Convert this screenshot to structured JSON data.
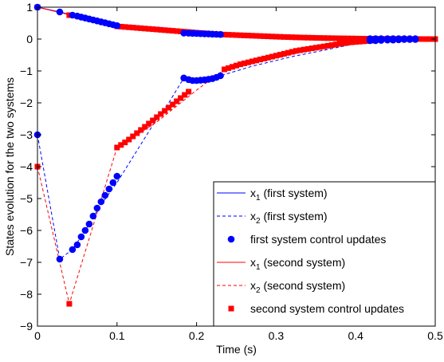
{
  "chart_data": {
    "type": "line",
    "title": "",
    "xlabel": "Time (s)",
    "ylabel": "States evolution for the two systems",
    "xlim": [
      0,
      0.5
    ],
    "ylim": [
      -9,
      1
    ],
    "xticks": [
      "0",
      "0.1",
      "0.2",
      "0.3",
      "0.4",
      "0.5"
    ],
    "yticks": [
      "1",
      "0",
      "−1",
      "−2",
      "−3",
      "−4",
      "−5",
      "−6",
      "−7",
      "−8",
      "−9"
    ],
    "grid": false,
    "legend_position": "bottom-right",
    "colors": {
      "first": "#0000ff",
      "second": "#ff0000"
    },
    "legend": [
      {
        "main": "x",
        "sub": "1",
        "tail": " (first system)",
        "series": "x1-first",
        "style": "solid-line",
        "color": "#0000ff"
      },
      {
        "main": "x",
        "sub": "2",
        "tail": " (first system)",
        "series": "x2-first",
        "style": "dashed-line",
        "color": "#0000ff"
      },
      {
        "main": "first system control updates",
        "sub": "",
        "tail": "",
        "series": "updates-first",
        "style": "circle-marker",
        "color": "#0000ff"
      },
      {
        "main": "x",
        "sub": "1",
        "tail": " (second system)",
        "series": "x1-second",
        "style": "solid-line",
        "color": "#ff0000"
      },
      {
        "main": "x",
        "sub": "2",
        "tail": " (second system)",
        "series": "x2-second",
        "style": "dashed-line",
        "color": "#ff0000"
      },
      {
        "main": "second system control updates",
        "sub": "",
        "tail": "",
        "series": "updates-second",
        "style": "square-marker",
        "color": "#ff0000"
      }
    ],
    "series": [
      {
        "id": "x1-first",
        "color": "#0000ff",
        "dash": false,
        "x": [
          0,
          0.028,
          0.044,
          0.06,
          0.08,
          0.1,
          0.12,
          0.15,
          0.184,
          0.2,
          0.23,
          0.27,
          0.32,
          0.37,
          0.418,
          0.45,
          0.475
        ],
        "y": [
          1,
          0.85,
          0.75,
          0.65,
          0.52,
          0.4,
          0.34,
          0.27,
          0.19,
          0.17,
          0.13,
          0.08,
          0.04,
          0.02,
          0.01,
          0.005,
          0.0
        ]
      },
      {
        "id": "x2-first",
        "color": "#0000ff",
        "dash": true,
        "x": [
          0,
          0.028,
          0.044,
          0.06,
          0.077,
          0.1,
          0.125,
          0.15,
          0.165,
          0.184,
          0.2,
          0.23,
          0.27,
          0.32,
          0.37,
          0.418,
          0.475
        ],
        "y": [
          -3,
          -6.9,
          -6.6,
          -6.0,
          -5.3,
          -4.5,
          -3.5,
          -2.5,
          -2.0,
          -1.22,
          -1.25,
          -1.15,
          -0.85,
          -0.55,
          -0.3,
          -0.05,
          0.0
        ]
      },
      {
        "id": "x1-second",
        "color": "#ff0000",
        "dash": false,
        "x": [
          0,
          0.042,
          0.07,
          0.1,
          0.15,
          0.2,
          0.235,
          0.3,
          0.35,
          0.4,
          0.45,
          0.5
        ],
        "y": [
          1,
          0.75,
          0.55,
          0.4,
          0.28,
          0.18,
          0.14,
          0.08,
          0.05,
          0.03,
          0.01,
          0.0
        ]
      },
      {
        "id": "x2-second",
        "color": "#ff0000",
        "dash": true,
        "x": [
          0,
          0.04,
          0.1,
          0.15,
          0.2,
          0.235,
          0.3,
          0.35,
          0.4,
          0.418,
          0.45,
          0.5
        ],
        "y": [
          -4,
          -8.3,
          -3.4,
          -2.6,
          -1.6,
          -0.95,
          -0.6,
          -0.3,
          -0.1,
          -0.08,
          -0.03,
          0.0
        ]
      }
    ],
    "updates_first": {
      "x": [
        0,
        0,
        0.028,
        0.028,
        0.044,
        0.044,
        0.05,
        0.055,
        0.06,
        0.065,
        0.07,
        0.075,
        0.08,
        0.085,
        0.09,
        0.095,
        0.1,
        0.05,
        0.055,
        0.06,
        0.065,
        0.07,
        0.075,
        0.08,
        0.085,
        0.09,
        0.095,
        0.1,
        0.184,
        0.19,
        0.195,
        0.2,
        0.205,
        0.21,
        0.215,
        0.22,
        0.225,
        0.23,
        0.184,
        0.19,
        0.195,
        0.2,
        0.205,
        0.21,
        0.215,
        0.22,
        0.225,
        0.23,
        0.418,
        0.425,
        0.432,
        0.44,
        0.447,
        0.454,
        0.461,
        0.468,
        0.475,
        0.418,
        0.425,
        0.432,
        0.44,
        0.447,
        0.454,
        0.461,
        0.468,
        0.475
      ],
      "y": [
        1,
        -3,
        0.85,
        -6.9,
        0.75,
        -6.6,
        0.72,
        0.69,
        0.66,
        0.63,
        0.6,
        0.57,
        0.54,
        0.51,
        0.48,
        0.45,
        0.42,
        -6.45,
        -6.2,
        -6.0,
        -5.8,
        -5.55,
        -5.3,
        -5.1,
        -4.9,
        -4.7,
        -4.5,
        -4.3,
        0.19,
        0.185,
        0.18,
        0.175,
        0.17,
        0.165,
        0.16,
        0.155,
        0.15,
        0.145,
        -1.22,
        -1.27,
        -1.3,
        -1.3,
        -1.29,
        -1.28,
        -1.26,
        -1.24,
        -1.2,
        -1.15,
        0.01,
        0.01,
        0.01,
        0.01,
        0.01,
        0.01,
        0.01,
        0.01,
        0.01,
        -0.05,
        -0.05,
        -0.04,
        -0.03,
        -0.03,
        -0.02,
        -0.01,
        -0.01,
        -0.01
      ]
    },
    "updates_second": {
      "x": [
        0,
        0,
        0.04,
        0.04,
        0.1,
        0.105,
        0.11,
        0.115,
        0.12,
        0.125,
        0.13,
        0.135,
        0.14,
        0.145,
        0.15,
        0.155,
        0.16,
        0.165,
        0.17,
        0.175,
        0.18,
        0.185,
        0.19,
        0.195,
        0.2,
        0.205,
        0.21,
        0.215,
        0.22,
        0.225,
        0.23,
        0.1,
        0.105,
        0.11,
        0.115,
        0.12,
        0.125,
        0.13,
        0.135,
        0.14,
        0.145,
        0.15,
        0.155,
        0.16,
        0.165,
        0.17,
        0.175,
        0.18,
        0.185,
        0.19,
        0.235,
        0.24,
        0.245,
        0.25,
        0.255,
        0.26,
        0.265,
        0.27,
        0.275,
        0.28,
        0.285,
        0.29,
        0.295,
        0.3,
        0.305,
        0.31,
        0.315,
        0.32,
        0.325,
        0.33,
        0.335,
        0.34,
        0.345,
        0.35,
        0.355,
        0.36,
        0.365,
        0.37,
        0.375,
        0.38,
        0.385,
        0.39,
        0.395,
        0.4,
        0.405,
        0.41,
        0.415,
        0.42,
        0.425,
        0.43,
        0.435,
        0.44,
        0.445,
        0.45,
        0.455,
        0.46,
        0.465,
        0.47,
        0.475,
        0.48,
        0.485,
        0.49,
        0.495,
        0.5,
        0.235,
        0.24,
        0.245,
        0.25,
        0.255,
        0.26,
        0.265,
        0.27,
        0.275,
        0.28,
        0.285,
        0.29,
        0.295,
        0.3,
        0.305,
        0.31,
        0.315,
        0.32,
        0.325,
        0.33,
        0.335,
        0.34,
        0.345,
        0.35,
        0.355,
        0.36,
        0.365,
        0.37,
        0.375,
        0.38,
        0.385,
        0.39,
        0.395,
        0.4,
        0.405,
        0.41,
        0.415,
        0.42
      ],
      "y": [
        1,
        -4,
        0.75,
        -8.3,
        0.4,
        0.39,
        0.38,
        0.37,
        0.36,
        0.35,
        0.34,
        0.33,
        0.32,
        0.31,
        0.3,
        0.29,
        0.28,
        0.27,
        0.26,
        0.25,
        0.24,
        0.23,
        0.22,
        0.21,
        0.2,
        0.19,
        0.18,
        0.17,
        0.16,
        0.15,
        0.145,
        -3.4,
        -3.32,
        -3.24,
        -3.15,
        -3.05,
        -2.95,
        -2.85,
        -2.75,
        -2.65,
        -2.55,
        -2.45,
        -2.35,
        -2.25,
        -2.15,
        -2.05,
        -1.95,
        -1.85,
        -1.75,
        -1.65,
        0.14,
        0.135,
        0.13,
        0.125,
        0.12,
        0.115,
        0.11,
        0.105,
        0.1,
        0.095,
        0.09,
        0.085,
        0.08,
        0.075,
        0.07,
        0.066,
        0.062,
        0.058,
        0.054,
        0.05,
        0.047,
        0.044,
        0.041,
        0.038,
        0.035,
        0.032,
        0.03,
        0.028,
        0.026,
        0.024,
        0.022,
        0.02,
        0.018,
        0.016,
        0.014,
        0.012,
        0.01,
        0.009,
        0.008,
        0.007,
        0.006,
        0.005,
        0.004,
        0.003,
        0.003,
        0.002,
        0.002,
        0.001,
        0.001,
        0.001,
        0.0,
        0.0,
        0.0,
        0.0,
        -0.95,
        -0.91,
        -0.87,
        -0.83,
        -0.79,
        -0.76,
        -0.73,
        -0.7,
        -0.67,
        -0.64,
        -0.61,
        -0.58,
        -0.55,
        -0.52,
        -0.49,
        -0.46,
        -0.43,
        -0.4,
        -0.37,
        -0.35,
        -0.33,
        -0.31,
        -0.29,
        -0.27,
        -0.25,
        -0.23,
        -0.21,
        -0.19,
        -0.17,
        -0.15,
        -0.13,
        -0.11,
        -0.1,
        -0.09,
        -0.08,
        -0.07,
        -0.06,
        -0.05
      ]
    }
  }
}
